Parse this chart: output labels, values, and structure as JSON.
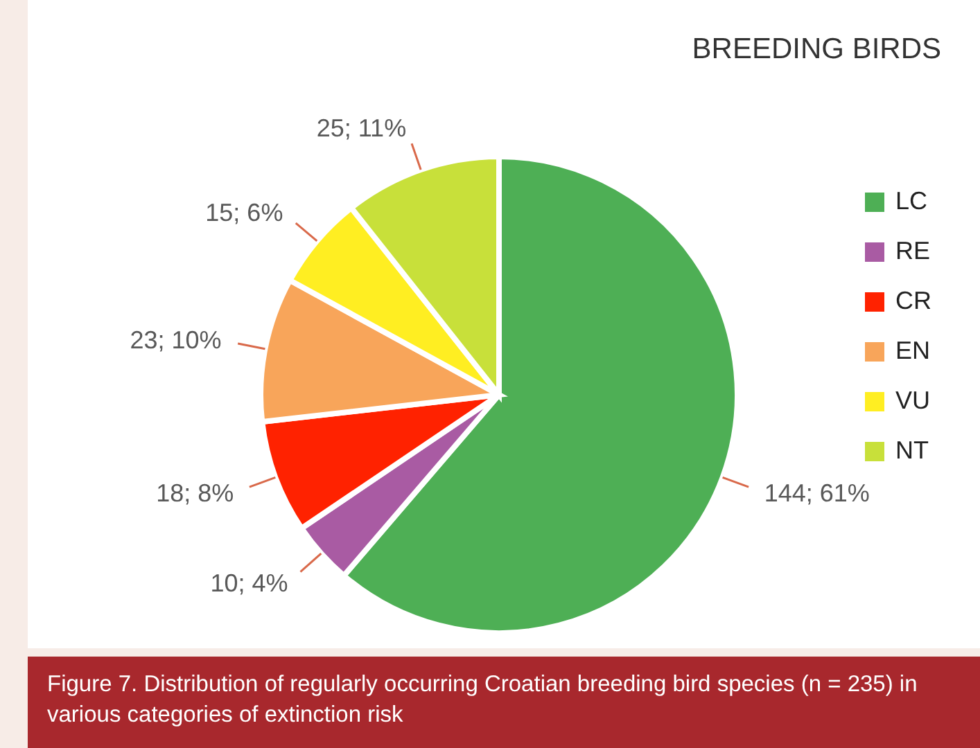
{
  "chart_data": {
    "type": "pie",
    "title": "BREEDING BIRDS",
    "categories": [
      "LC",
      "RE",
      "CR",
      "EN",
      "VU",
      "NT"
    ],
    "values": [
      144,
      10,
      18,
      23,
      15,
      25
    ],
    "value_labels": [
      "144; 61%",
      "10; 4%",
      "18; 8%",
      "23; 10%",
      "15; 6%",
      "25; 11%"
    ],
    "colors": [
      "#4eaf55",
      "#a95ba3",
      "#ff2200",
      "#f8a55a",
      "#ffee22",
      "#c8e03a"
    ],
    "legend": "right",
    "annotations": [
      "Figure 7.  Distribution of regularly occurring Croatian breeding bird species (n = 235) in various categories of extinction risk"
    ]
  }
}
